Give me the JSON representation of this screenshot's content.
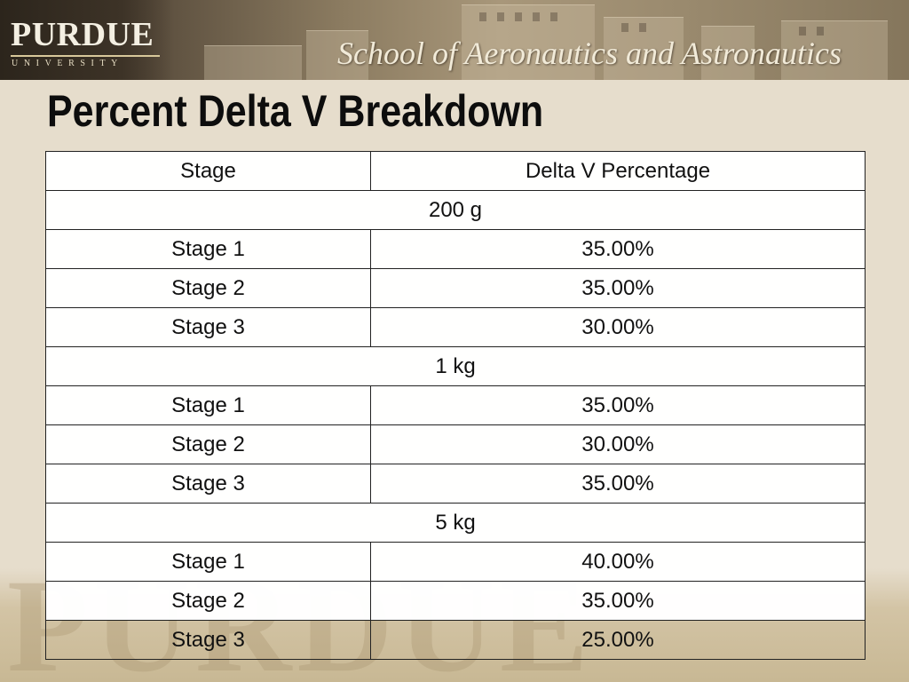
{
  "header": {
    "university_name": "PURDUE",
    "university_sub": "UNIVERSITY",
    "school_name": "School of Aeronautics and Astronautics"
  },
  "title": "Percent Delta V Breakdown",
  "watermark": "PURDUE",
  "table": {
    "columns": [
      "Stage",
      "Delta V Percentage"
    ],
    "groups": [
      {
        "label": "200 g",
        "rows": [
          {
            "stage": "Stage 1",
            "percentage": "35.00%"
          },
          {
            "stage": "Stage 2",
            "percentage": "35.00%"
          },
          {
            "stage": "Stage 3",
            "percentage": "30.00%"
          }
        ]
      },
      {
        "label": "1 kg",
        "rows": [
          {
            "stage": "Stage 1",
            "percentage": "35.00%"
          },
          {
            "stage": "Stage 2",
            "percentage": "30.00%"
          },
          {
            "stage": "Stage 3",
            "percentage": "35.00%"
          }
        ]
      },
      {
        "label": "5 kg",
        "rows": [
          {
            "stage": "Stage 1",
            "percentage": "40.00%"
          },
          {
            "stage": "Stage 2",
            "percentage": "35.00%"
          },
          {
            "stage": "Stage 3",
            "percentage": "25.00%"
          }
        ]
      }
    ]
  },
  "colors": {
    "background": "#e6ddcc",
    "banner_dark": "#3c3226",
    "text": "#111111"
  }
}
